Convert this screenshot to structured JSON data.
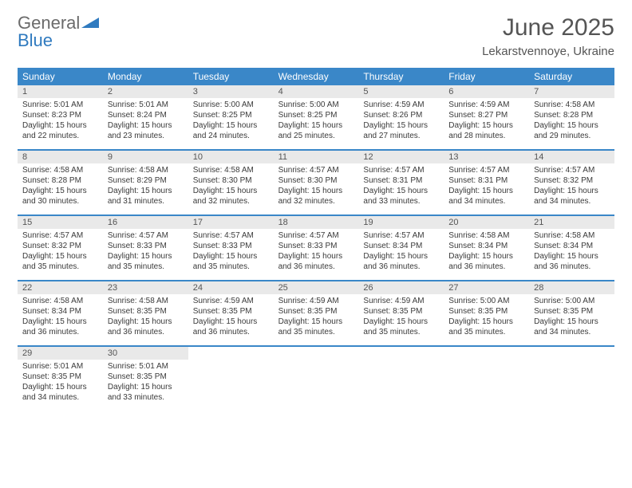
{
  "logo": {
    "text_general": "General",
    "text_blue": "Blue"
  },
  "title": "June 2025",
  "location": "Lekarstvennoye, Ukraine",
  "colors": {
    "header_bg": "#3a87c8",
    "header_text": "#ffffff",
    "daynum_bg": "#e9e9e9",
    "text": "#3a3a3a",
    "title_color": "#555555",
    "logo_gray": "#6b6b6b",
    "logo_blue": "#2f7abf",
    "logo_tri_fill": "#2f7abf"
  },
  "days_of_week": [
    "Sunday",
    "Monday",
    "Tuesday",
    "Wednesday",
    "Thursday",
    "Friday",
    "Saturday"
  ],
  "weeks": [
    [
      {
        "n": "1",
        "sr": "5:01 AM",
        "ss": "8:23 PM",
        "dl": "15 hours and 22 minutes."
      },
      {
        "n": "2",
        "sr": "5:01 AM",
        "ss": "8:24 PM",
        "dl": "15 hours and 23 minutes."
      },
      {
        "n": "3",
        "sr": "5:00 AM",
        "ss": "8:25 PM",
        "dl": "15 hours and 24 minutes."
      },
      {
        "n": "4",
        "sr": "5:00 AM",
        "ss": "8:25 PM",
        "dl": "15 hours and 25 minutes."
      },
      {
        "n": "5",
        "sr": "4:59 AM",
        "ss": "8:26 PM",
        "dl": "15 hours and 27 minutes."
      },
      {
        "n": "6",
        "sr": "4:59 AM",
        "ss": "8:27 PM",
        "dl": "15 hours and 28 minutes."
      },
      {
        "n": "7",
        "sr": "4:58 AM",
        "ss": "8:28 PM",
        "dl": "15 hours and 29 minutes."
      }
    ],
    [
      {
        "n": "8",
        "sr": "4:58 AM",
        "ss": "8:28 PM",
        "dl": "15 hours and 30 minutes."
      },
      {
        "n": "9",
        "sr": "4:58 AM",
        "ss": "8:29 PM",
        "dl": "15 hours and 31 minutes."
      },
      {
        "n": "10",
        "sr": "4:58 AM",
        "ss": "8:30 PM",
        "dl": "15 hours and 32 minutes."
      },
      {
        "n": "11",
        "sr": "4:57 AM",
        "ss": "8:30 PM",
        "dl": "15 hours and 32 minutes."
      },
      {
        "n": "12",
        "sr": "4:57 AM",
        "ss": "8:31 PM",
        "dl": "15 hours and 33 minutes."
      },
      {
        "n": "13",
        "sr": "4:57 AM",
        "ss": "8:31 PM",
        "dl": "15 hours and 34 minutes."
      },
      {
        "n": "14",
        "sr": "4:57 AM",
        "ss": "8:32 PM",
        "dl": "15 hours and 34 minutes."
      }
    ],
    [
      {
        "n": "15",
        "sr": "4:57 AM",
        "ss": "8:32 PM",
        "dl": "15 hours and 35 minutes."
      },
      {
        "n": "16",
        "sr": "4:57 AM",
        "ss": "8:33 PM",
        "dl": "15 hours and 35 minutes."
      },
      {
        "n": "17",
        "sr": "4:57 AM",
        "ss": "8:33 PM",
        "dl": "15 hours and 35 minutes."
      },
      {
        "n": "18",
        "sr": "4:57 AM",
        "ss": "8:33 PM",
        "dl": "15 hours and 36 minutes."
      },
      {
        "n": "19",
        "sr": "4:57 AM",
        "ss": "8:34 PM",
        "dl": "15 hours and 36 minutes."
      },
      {
        "n": "20",
        "sr": "4:58 AM",
        "ss": "8:34 PM",
        "dl": "15 hours and 36 minutes."
      },
      {
        "n": "21",
        "sr": "4:58 AM",
        "ss": "8:34 PM",
        "dl": "15 hours and 36 minutes."
      }
    ],
    [
      {
        "n": "22",
        "sr": "4:58 AM",
        "ss": "8:34 PM",
        "dl": "15 hours and 36 minutes."
      },
      {
        "n": "23",
        "sr": "4:58 AM",
        "ss": "8:35 PM",
        "dl": "15 hours and 36 minutes."
      },
      {
        "n": "24",
        "sr": "4:59 AM",
        "ss": "8:35 PM",
        "dl": "15 hours and 36 minutes."
      },
      {
        "n": "25",
        "sr": "4:59 AM",
        "ss": "8:35 PM",
        "dl": "15 hours and 35 minutes."
      },
      {
        "n": "26",
        "sr": "4:59 AM",
        "ss": "8:35 PM",
        "dl": "15 hours and 35 minutes."
      },
      {
        "n": "27",
        "sr": "5:00 AM",
        "ss": "8:35 PM",
        "dl": "15 hours and 35 minutes."
      },
      {
        "n": "28",
        "sr": "5:00 AM",
        "ss": "8:35 PM",
        "dl": "15 hours and 34 minutes."
      }
    ],
    [
      {
        "n": "29",
        "sr": "5:01 AM",
        "ss": "8:35 PM",
        "dl": "15 hours and 34 minutes."
      },
      {
        "n": "30",
        "sr": "5:01 AM",
        "ss": "8:35 PM",
        "dl": "15 hours and 33 minutes."
      },
      null,
      null,
      null,
      null,
      null
    ]
  ],
  "labels": {
    "sunrise": "Sunrise:",
    "sunset": "Sunset:",
    "daylight": "Daylight:"
  }
}
